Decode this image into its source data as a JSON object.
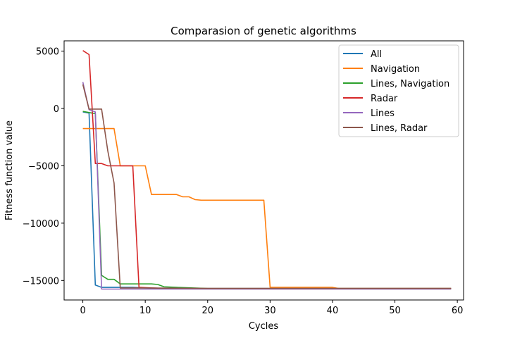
{
  "chart_data": {
    "type": "line",
    "title": "Comparasion of genetic algorithms",
    "xlabel": "Cycles",
    "ylabel": "Fitness function value",
    "xlim": [
      -3,
      61
    ],
    "ylim": [
      -16700,
      5900
    ],
    "xticks": [
      0,
      10,
      20,
      30,
      40,
      50,
      60
    ],
    "yticks": [
      5000,
      0,
      -5000,
      -10000,
      -15000
    ],
    "ytick_labels": [
      "5000",
      "0",
      "−5000",
      "−10000",
      "−15000"
    ],
    "grid": false,
    "legend_position": "top-right",
    "series": [
      {
        "name": "All",
        "color": "#1f77b4",
        "points": [
          [
            0,
            -300
          ],
          [
            1,
            -400
          ],
          [
            2,
            -15400
          ],
          [
            3,
            -15600
          ],
          [
            5,
            -15600
          ],
          [
            8,
            -15600
          ],
          [
            12,
            -15700
          ],
          [
            20,
            -15700
          ],
          [
            30,
            -15700
          ],
          [
            40,
            -15700
          ],
          [
            50,
            -15700
          ],
          [
            59,
            -15700
          ]
        ]
      },
      {
        "name": "Navigation",
        "color": "#ff7f0e",
        "points": [
          [
            0,
            -1750
          ],
          [
            1,
            -1750
          ],
          [
            5,
            -1750
          ],
          [
            6,
            -5000
          ],
          [
            10,
            -5000
          ],
          [
            11,
            -7500
          ],
          [
            15,
            -7500
          ],
          [
            16,
            -7700
          ],
          [
            17,
            -7700
          ],
          [
            18,
            -7950
          ],
          [
            19,
            -8000
          ],
          [
            28,
            -8000
          ],
          [
            29,
            -8000
          ],
          [
            30,
            -15600
          ],
          [
            40,
            -15600
          ],
          [
            41,
            -15700
          ],
          [
            59,
            -15700
          ]
        ]
      },
      {
        "name": "Lines, Navigation",
        "color": "#2ca02c",
        "points": [
          [
            0,
            -250
          ],
          [
            1,
            -350
          ],
          [
            2,
            -450
          ],
          [
            3,
            -14550
          ],
          [
            4,
            -14900
          ],
          [
            5,
            -14900
          ],
          [
            6,
            -15300
          ],
          [
            11,
            -15300
          ],
          [
            12,
            -15350
          ],
          [
            13,
            -15550
          ],
          [
            15,
            -15600
          ],
          [
            20,
            -15700
          ],
          [
            59,
            -15700
          ]
        ]
      },
      {
        "name": "Radar",
        "color": "#d62728",
        "points": [
          [
            0,
            5050
          ],
          [
            1,
            4700
          ],
          [
            2,
            -4800
          ],
          [
            3,
            -4800
          ],
          [
            4,
            -5000
          ],
          [
            8,
            -5000
          ],
          [
            9,
            -15600
          ],
          [
            13,
            -15700
          ],
          [
            59,
            -15700
          ]
        ]
      },
      {
        "name": "Lines",
        "color": "#9467bd",
        "points": [
          [
            0,
            2300
          ],
          [
            1,
            -100
          ],
          [
            2,
            -300
          ],
          [
            3,
            -15750
          ],
          [
            5,
            -15750
          ],
          [
            59,
            -15750
          ]
        ]
      },
      {
        "name": "Lines, Radar",
        "color": "#8c564b",
        "points": [
          [
            0,
            2100
          ],
          [
            1,
            -50
          ],
          [
            3,
            -50
          ],
          [
            4,
            -3700
          ],
          [
            5,
            -6500
          ],
          [
            6,
            -15650
          ],
          [
            10,
            -15650
          ],
          [
            20,
            -15700
          ],
          [
            59,
            -15700
          ]
        ]
      }
    ]
  }
}
